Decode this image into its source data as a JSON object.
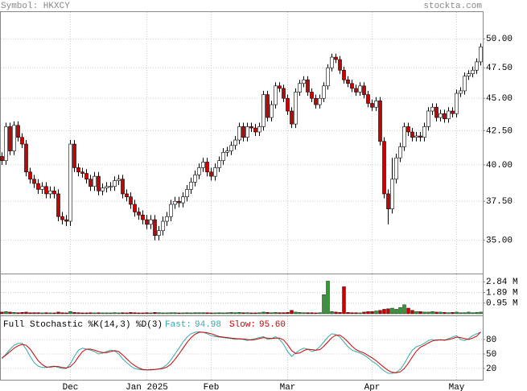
{
  "chart_data": [
    {
      "type": "candlestick",
      "title": "Symbol: HKXCY",
      "source": "stockta.com",
      "log_scale": true,
      "grid": true,
      "up_color": "#ffffff",
      "down_color": "#cc0000",
      "categories": [
        null,
        null,
        null,
        null,
        null,
        null,
        null,
        null,
        null,
        null,
        null,
        null,
        null,
        null,
        null,
        null,
        null,
        "Dec",
        null,
        null,
        null,
        null,
        null,
        null,
        null,
        null,
        null,
        null,
        null,
        null,
        null,
        null,
        null,
        null,
        null,
        null,
        "Jan 2025",
        null,
        null,
        null,
        null,
        null,
        null,
        null,
        null,
        null,
        null,
        null,
        null,
        null,
        null,
        null,
        "Feb",
        null,
        null,
        null,
        null,
        null,
        null,
        null,
        null,
        null,
        null,
        null,
        null,
        null,
        null,
        null,
        null,
        null,
        null,
        "Mar",
        null,
        null,
        null,
        null,
        null,
        null,
        null,
        null,
        null,
        null,
        null,
        null,
        null,
        null,
        null,
        null,
        null,
        null,
        null,
        null,
        "Apr",
        null,
        null,
        null,
        null,
        null,
        null,
        null,
        null,
        null,
        null,
        null,
        null,
        null,
        null,
        null,
        null,
        null,
        null,
        null,
        null,
        "May",
        null,
        null,
        null,
        null,
        null,
        null
      ],
      "open": [
        40.6,
        40.3,
        42.8,
        41.0,
        42.9,
        42.0,
        41.5,
        39.5,
        39.0,
        38.7,
        38.3,
        38.5,
        38.0,
        38.2,
        38.0,
        36.5,
        36.3,
        36.2,
        41.5,
        39.8,
        39.5,
        39.4,
        39.0,
        38.5,
        39.2,
        38.2,
        38.4,
        38.5,
        38.5,
        38.9,
        39.0,
        38.0,
        37.8,
        37.3,
        36.8,
        36.6,
        36.3,
        36.0,
        36.3,
        35.3,
        35.6,
        36.2,
        36.5,
        37.3,
        37.5,
        37.4,
        37.8,
        38.3,
        38.8,
        39.3,
        39.8,
        40.2,
        39.5,
        39.2,
        39.8,
        40.3,
        40.9,
        41.0,
        41.4,
        41.8,
        42.8,
        42.0,
        42.8,
        42.7,
        42.4,
        42.8,
        45.3,
        43.5,
        44.5,
        46.0,
        45.8,
        45.0,
        44.0,
        43.0,
        45.5,
        46.2,
        46.5,
        45.5,
        45.0,
        44.5,
        45.0,
        46.0,
        47.5,
        48.4,
        48.2,
        47.3,
        46.5,
        46.2,
        45.8,
        45.5,
        46.0,
        45.3,
        44.6,
        44.3,
        44.8,
        41.7,
        38.0,
        37.0,
        39.0,
        40.5,
        41.3,
        42.8,
        42.4,
        42.0,
        42.1,
        42.0,
        42.8,
        44.0,
        44.3,
        43.5,
        43.8,
        43.4,
        44.0,
        43.8,
        45.4,
        45.6,
        46.8,
        47.0,
        47.3,
        48.0
      ],
      "high": [
        40.9,
        43.1,
        43.1,
        43.2,
        43.2,
        42.3,
        41.8,
        39.8,
        39.3,
        39.0,
        38.8,
        38.8,
        38.5,
        38.5,
        38.3,
        36.8,
        36.6,
        41.8,
        41.8,
        40.1,
        39.8,
        39.7,
        39.3,
        39.5,
        39.5,
        38.7,
        38.8,
        38.8,
        39.2,
        39.3,
        39.3,
        38.3,
        38.1,
        37.6,
        37.1,
        36.9,
        36.6,
        36.6,
        36.6,
        35.9,
        36.5,
        36.8,
        37.6,
        37.8,
        37.8,
        38.1,
        38.6,
        39.1,
        39.6,
        40.1,
        40.5,
        40.5,
        39.8,
        40.1,
        40.6,
        41.2,
        41.3,
        41.7,
        42.1,
        43.1,
        43.1,
        43.1,
        43.1,
        43.0,
        43.1,
        45.6,
        45.6,
        44.8,
        46.3,
        46.3,
        46.1,
        45.3,
        44.3,
        45.8,
        46.5,
        46.8,
        46.8,
        45.8,
        45.3,
        45.3,
        46.3,
        47.8,
        48.7,
        48.7,
        48.5,
        47.6,
        46.8,
        46.5,
        46.1,
        46.3,
        46.3,
        45.6,
        44.9,
        45.1,
        45.1,
        42.0,
        38.3,
        40.5,
        40.8,
        41.6,
        43.1,
        43.1,
        42.7,
        42.4,
        42.4,
        43.1,
        44.3,
        44.6,
        44.6,
        44.1,
        44.1,
        44.3,
        44.3,
        45.7,
        45.9,
        47.1,
        47.3,
        47.6,
        48.3,
        49.6
      ],
      "low": [
        40.0,
        40.0,
        40.7,
        40.7,
        41.7,
        41.2,
        39.2,
        38.7,
        38.4,
        38.0,
        38.0,
        37.7,
        37.7,
        37.7,
        36.2,
        36.0,
        35.9,
        35.9,
        39.5,
        39.2,
        39.1,
        38.7,
        38.2,
        38.2,
        37.9,
        37.9,
        38.1,
        38.2,
        38.2,
        38.6,
        37.7,
        37.5,
        37.0,
        36.5,
        36.3,
        36.0,
        35.7,
        35.7,
        35.0,
        35.0,
        35.3,
        35.9,
        36.2,
        37.0,
        37.1,
        37.1,
        37.5,
        38.0,
        38.5,
        39.0,
        39.5,
        39.2,
        38.9,
        38.9,
        39.5,
        40.0,
        40.6,
        40.7,
        41.1,
        41.5,
        41.7,
        41.7,
        42.4,
        42.1,
        42.1,
        42.5,
        43.2,
        43.2,
        44.2,
        45.5,
        44.7,
        43.7,
        42.7,
        42.7,
        45.2,
        45.9,
        45.2,
        44.7,
        44.2,
        44.2,
        44.7,
        45.7,
        47.2,
        47.9,
        47.0,
        46.2,
        45.9,
        45.5,
        45.2,
        45.2,
        45.0,
        44.3,
        44.0,
        44.0,
        41.4,
        37.7,
        36.0,
        36.7,
        38.7,
        40.2,
        41.0,
        42.1,
        41.7,
        41.7,
        41.7,
        41.7,
        42.5,
        43.7,
        43.2,
        43.2,
        43.1,
        43.1,
        43.5,
        43.5,
        45.1,
        45.3,
        46.5,
        46.7,
        47.0,
        47.7
      ],
      "close": [
        40.3,
        42.8,
        41.0,
        42.9,
        42.0,
        41.5,
        39.5,
        39.0,
        38.7,
        38.3,
        38.5,
        38.0,
        38.2,
        38.0,
        36.5,
        36.3,
        36.2,
        41.5,
        39.8,
        39.5,
        39.4,
        39.0,
        38.5,
        39.2,
        38.2,
        38.4,
        38.5,
        38.5,
        38.9,
        39.0,
        38.0,
        37.8,
        37.3,
        36.8,
        36.6,
        36.3,
        36.0,
        36.3,
        35.3,
        35.6,
        36.2,
        36.5,
        37.3,
        37.5,
        37.4,
        37.8,
        38.3,
        38.8,
        39.3,
        39.8,
        40.2,
        39.5,
        39.2,
        39.8,
        40.3,
        40.9,
        41.0,
        41.4,
        41.8,
        42.8,
        42.0,
        42.8,
        42.7,
        42.4,
        42.8,
        45.3,
        43.5,
        44.5,
        46.0,
        45.8,
        45.0,
        44.0,
        43.0,
        45.5,
        46.2,
        46.5,
        45.5,
        45.0,
        44.5,
        45.0,
        46.0,
        47.5,
        48.4,
        48.2,
        47.3,
        46.5,
        46.2,
        45.8,
        45.5,
        46.0,
        45.3,
        44.6,
        44.3,
        44.8,
        41.7,
        38.0,
        37.0,
        39.0,
        40.5,
        41.3,
        42.8,
        42.4,
        42.0,
        42.1,
        42.0,
        42.8,
        44.0,
        44.3,
        43.5,
        43.8,
        43.4,
        44.0,
        43.8,
        45.4,
        45.6,
        46.8,
        47.0,
        47.3,
        48.0,
        49.3
      ],
      "ylim": [
        33,
        52.5
      ],
      "yticks": [
        {
          "value": 35,
          "label": "35.00"
        },
        {
          "value": 37.5,
          "label": "37.50"
        },
        {
          "value": 40,
          "label": "40.00"
        },
        {
          "value": 42.5,
          "label": "42.50"
        },
        {
          "value": 45,
          "label": "45.00"
        },
        {
          "value": 47.5,
          "label": "47.50"
        },
        {
          "value": 50,
          "label": "50.00"
        }
      ]
    },
    {
      "type": "bar",
      "up_color": "#339933",
      "down_color": "#cc0000",
      "grid": true,
      "values": [
        0.15,
        0.2,
        0.15,
        0.12,
        0.1,
        0.12,
        0.15,
        0.1,
        0.1,
        0.1,
        0.08,
        0.1,
        0.08,
        0.08,
        0.15,
        0.1,
        0.08,
        0.2,
        0.12,
        0.1,
        0.08,
        0.08,
        0.1,
        0.08,
        0.1,
        0.08,
        0.08,
        0.08,
        0.1,
        0.08,
        0.1,
        0.08,
        0.12,
        0.1,
        0.08,
        0.08,
        0.1,
        0.08,
        0.12,
        0.1,
        0.08,
        0.08,
        0.1,
        0.1,
        0.08,
        0.08,
        0.1,
        0.08,
        0.1,
        0.1,
        0.1,
        0.1,
        0.08,
        0.08,
        0.1,
        0.08,
        0.1,
        0.12,
        0.1,
        0.12,
        0.1,
        0.1,
        0.08,
        0.08,
        0.1,
        0.15,
        0.12,
        0.1,
        0.12,
        0.1,
        0.1,
        0.12,
        0.3,
        0.15,
        0.12,
        0.1,
        0.1,
        0.1,
        0.08,
        0.1,
        1.7,
        2.9,
        0.2,
        0.15,
        0.12,
        2.4,
        0.12,
        0.1,
        0.1,
        0.08,
        0.15,
        0.2,
        0.2,
        0.25,
        0.3,
        0.4,
        0.45,
        0.5,
        0.4,
        0.55,
        0.8,
        0.5,
        0.3,
        0.2,
        0.2,
        0.15,
        0.15,
        0.2,
        0.15,
        0.15,
        0.12,
        0.1,
        0.12,
        0.15,
        0.1,
        0.1,
        0.15,
        0.1,
        0.12,
        0.15
      ],
      "ylim": [
        0,
        3.5
      ],
      "yticks": [
        {
          "value": 0.95,
          "label": "0.95 M"
        },
        {
          "value": 1.89,
          "label": "1.89 M"
        },
        {
          "value": 2.84,
          "label": "2.84 M"
        }
      ]
    },
    {
      "type": "line",
      "title": "Full Stochastic %K(14,3) %D(3)",
      "grid": true,
      "series": [
        {
          "name": "Fast:",
          "color": "#33aaaa",
          "readout": 94.98,
          "values": [
            40,
            50,
            60,
            68,
            72,
            72,
            60,
            45,
            32,
            25,
            22,
            22,
            24,
            25,
            22,
            20,
            20,
            30,
            45,
            58,
            62,
            60,
            58,
            55,
            50,
            52,
            55,
            58,
            56,
            50,
            40,
            32,
            25,
            20,
            18,
            17,
            17,
            18,
            18,
            19,
            22,
            28,
            38,
            50,
            62,
            75,
            85,
            92,
            95,
            96,
            95,
            92,
            88,
            86,
            85,
            84,
            83,
            82,
            80,
            82,
            80,
            78,
            80,
            82,
            84,
            86,
            80,
            82,
            86,
            80,
            70,
            55,
            45,
            52,
            58,
            62,
            60,
            55,
            58,
            65,
            75,
            85,
            92,
            90,
            85,
            75,
            65,
            58,
            55,
            52,
            48,
            42,
            35,
            30,
            22,
            15,
            10,
            10,
            12,
            18,
            30,
            45,
            58,
            65,
            68,
            72,
            78,
            80,
            78,
            80,
            78,
            82,
            85,
            88,
            80,
            78,
            82,
            88,
            92,
            94.98
          ]
        },
        {
          "name": "Slow:",
          "color": "#cc0000",
          "readout": {
            "value": 95.6,
            "label": "95.60"
          },
          "values": [
            42,
            48,
            55,
            62,
            67,
            70,
            68,
            60,
            48,
            36,
            28,
            23,
            23,
            24,
            24,
            22,
            21,
            24,
            32,
            44,
            55,
            60,
            60,
            58,
            55,
            53,
            53,
            55,
            57,
            55,
            48,
            40,
            32,
            26,
            21,
            18,
            17,
            17,
            18,
            19,
            20,
            23,
            29,
            39,
            50,
            62,
            74,
            84,
            91,
            95,
            95,
            94,
            92,
            89,
            86,
            85,
            84,
            83,
            82,
            81,
            81,
            80,
            79,
            80,
            82,
            84,
            83,
            82,
            83,
            83,
            79,
            69,
            57,
            51,
            52,
            57,
            60,
            59,
            58,
            59,
            66,
            75,
            84,
            89,
            89,
            83,
            75,
            66,
            59,
            55,
            52,
            47,
            42,
            36,
            29,
            22,
            16,
            12,
            11,
            13,
            20,
            31,
            44,
            56,
            64,
            68,
            73,
            77,
            79,
            79,
            79,
            80,
            82,
            85,
            84,
            82,
            80,
            83,
            87,
            95.6
          ]
        }
      ],
      "ylim": [
        0,
        100
      ],
      "yticks": [
        20,
        50,
        80
      ]
    }
  ]
}
